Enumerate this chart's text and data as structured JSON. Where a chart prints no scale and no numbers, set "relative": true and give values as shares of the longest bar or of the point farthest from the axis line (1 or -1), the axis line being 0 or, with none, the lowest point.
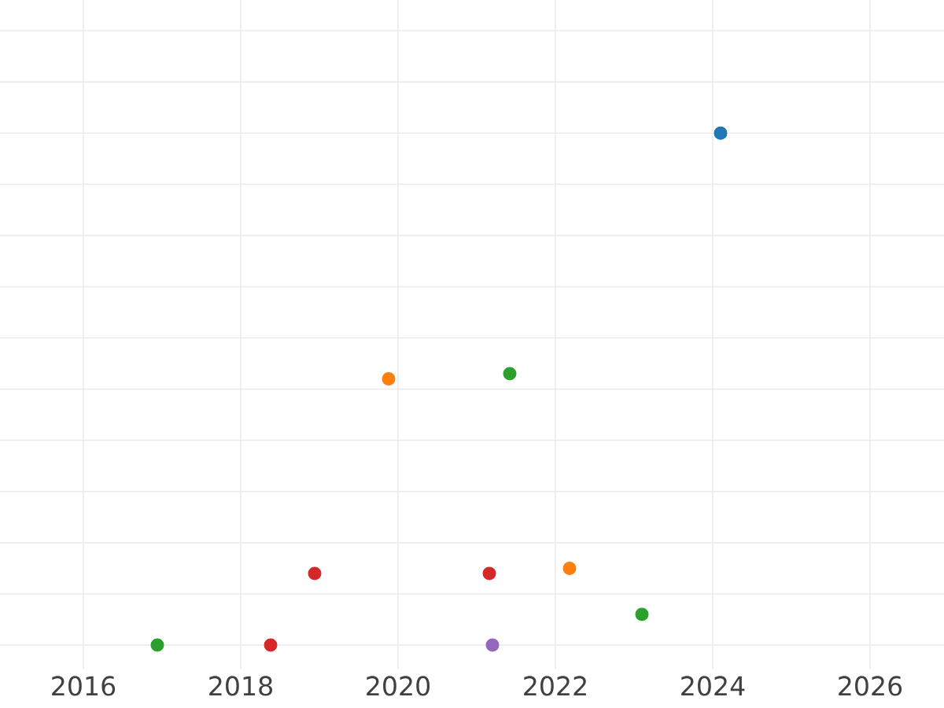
{
  "chart_data": {
    "type": "scatter",
    "relative": true,
    "grid": true,
    "xlim": [
      2014.94,
      2026.94
    ],
    "xticks": [
      2016,
      2018,
      2020,
      2022,
      2024,
      2026
    ],
    "series": [
      {
        "color": "#1f77b4",
        "x": [
          2024.1
        ],
        "values": [
          1
        ]
      },
      {
        "color": "#ff7f0e",
        "x": [
          2019.88,
          2022.18
        ],
        "values": [
          0.52,
          0.15
        ]
      },
      {
        "color": "#2ca02c",
        "x": [
          2021.42,
          2016.94,
          2023.1
        ],
        "values": [
          0.53,
          0.0,
          0.06
        ]
      },
      {
        "color": "#d62728",
        "x": [
          2018.94,
          2018.38,
          2021.16
        ],
        "values": [
          0.14,
          0.0,
          0.14
        ]
      },
      {
        "color": "#9467bd",
        "x": [
          2021.2
        ],
        "values": [
          0.0
        ]
      }
    ]
  }
}
